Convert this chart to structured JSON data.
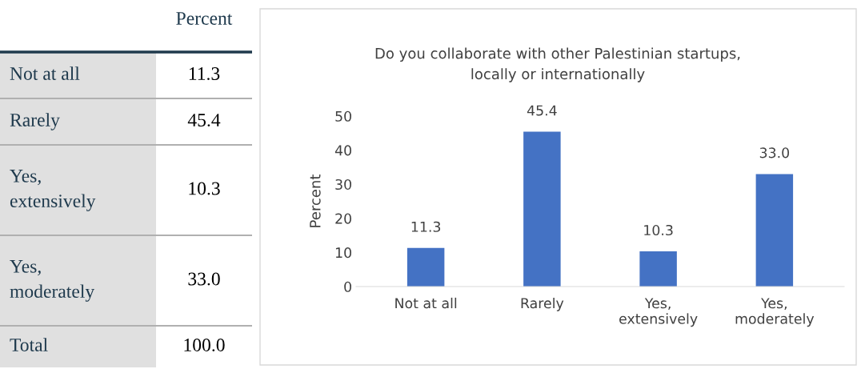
{
  "chart_data": [
    {
      "type": "other",
      "title": "Percent",
      "categories": [
        "Not at all",
        "Rarely",
        "Yes, extensively",
        "Yes, moderately",
        "Total"
      ],
      "value_labels": [
        "11.3",
        "45.4",
        "10.3",
        "33.0",
        "100.0"
      ]
    },
    {
      "type": "bar",
      "title": "Do you collaborate with other Palestinian startups, locally or internationally",
      "ylabel": "Percent",
      "categories": [
        "Not at all",
        "Rarely",
        "Yes, extensively",
        "Yes, moderately"
      ],
      "values": [
        11.3,
        45.4,
        10.3,
        33.0
      ],
      "value_labels": [
        "11.3",
        "45.4",
        "10.3",
        "33.0"
      ],
      "color": "#4472c4",
      "ylim": [
        0,
        50
      ],
      "yticks": [
        0,
        10,
        20,
        30,
        40,
        50
      ],
      "grid": false,
      "legend": false
    }
  ]
}
